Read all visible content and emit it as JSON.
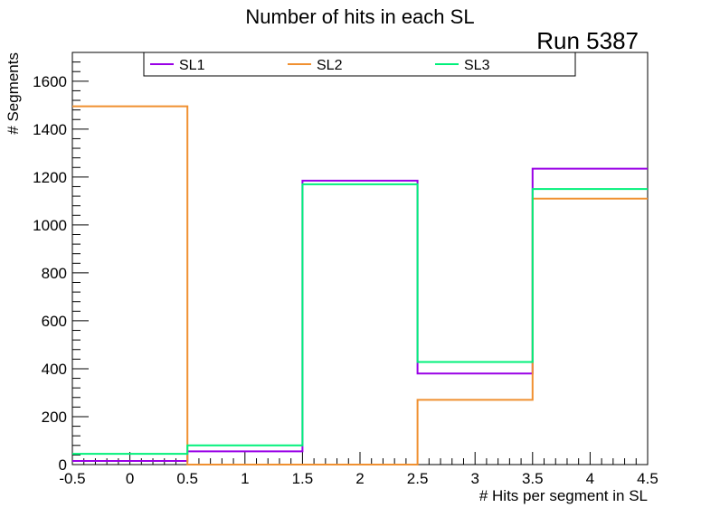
{
  "chart_data": {
    "type": "step",
    "title": "Number of hits in each SL",
    "annotation": "Run 5387",
    "xlabel": "# Hits per segment in SL",
    "ylabel": "# Segments",
    "xlim": [
      -0.5,
      4.5
    ],
    "ylim": [
      0,
      1720
    ],
    "bin_edges": [
      -0.5,
      0.5,
      1.5,
      2.5,
      3.5,
      4.5
    ],
    "x_ticks": [
      "-0.5",
      "0",
      "0.5",
      "1",
      "1.5",
      "2",
      "2.5",
      "3",
      "3.5",
      "4",
      "4.5"
    ],
    "x_tick_values": [
      -0.5,
      0,
      0.5,
      1,
      1.5,
      2,
      2.5,
      3,
      3.5,
      4,
      4.5
    ],
    "y_ticks": [
      "0",
      "200",
      "400",
      "600",
      "800",
      "1000",
      "1200",
      "1400",
      "1600"
    ],
    "y_tick_values": [
      0,
      200,
      400,
      600,
      800,
      1000,
      1200,
      1400,
      1600
    ],
    "legend_position": "top",
    "series": [
      {
        "name": "SL1",
        "color": "#9900e6",
        "values": [
          15,
          55,
          1185,
          380,
          1235
        ]
      },
      {
        "name": "SL2",
        "color": "#f09030",
        "values": [
          1495,
          0,
          0,
          270,
          1110
        ]
      },
      {
        "name": "SL3",
        "color": "#00f07a",
        "values": [
          45,
          80,
          1170,
          428,
          1150
        ]
      }
    ]
  }
}
